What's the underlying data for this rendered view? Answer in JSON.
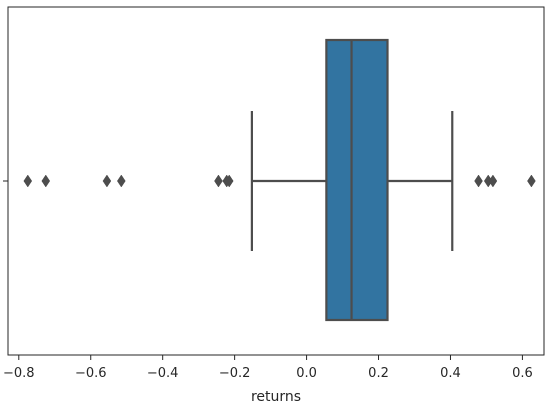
{
  "chart_data": {
    "type": "boxplot",
    "orientation": "horizontal",
    "xlabel": "returns",
    "ylabel": "",
    "xlim": [
      -0.83,
      0.66
    ],
    "x_ticks": [
      -0.8,
      -0.6,
      -0.4,
      -0.2,
      0.0,
      0.2,
      0.4,
      0.6
    ],
    "x_tick_labels": [
      "−0.8",
      "−0.6",
      "−0.4",
      "−0.2",
      "0.0",
      "0.2",
      "0.4",
      "0.6"
    ],
    "box": {
      "whisker_low": -0.152,
      "q1": 0.055,
      "median": 0.125,
      "q3": 0.225,
      "whisker_high": 0.405
    },
    "outliers": [
      -0.775,
      -0.725,
      -0.555,
      -0.515,
      -0.245,
      -0.222,
      -0.215,
      0.478,
      0.505,
      0.518,
      0.625
    ],
    "color_box": "#3274a1",
    "color_line": "#4d4d4d"
  }
}
